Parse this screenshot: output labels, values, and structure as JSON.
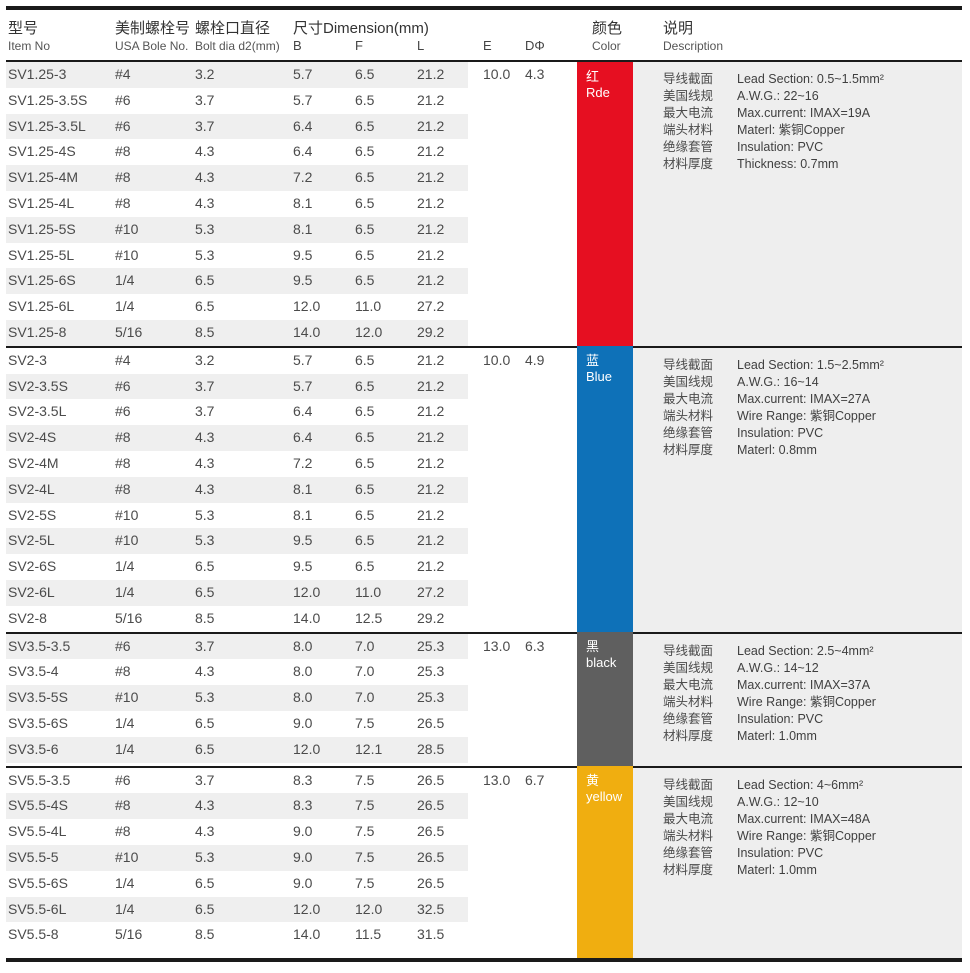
{
  "header": {
    "item": {
      "zh": "型号",
      "en": "Item No"
    },
    "usa": {
      "zh": "美制螺栓号",
      "en": "USA Bole No."
    },
    "dia": {
      "zh": "螺栓口直径",
      "en": "Bolt dia d2(mm)"
    },
    "dim": {
      "zh": "尺寸Dimension(mm)",
      "sub_b": "B",
      "sub_f": "F",
      "sub_l": "L"
    },
    "e": "E",
    "d": "DΦ",
    "color": {
      "zh": "颜色",
      "en": "Color"
    },
    "desc": {
      "zh": "说明",
      "en": "Description"
    }
  },
  "colors": {
    "rule": "#1a1a1a",
    "stripe": "#efefef",
    "desc_panel": "#eeeeee",
    "red": "#e60f21",
    "blue": "#0e71b8",
    "black": "#5f5f5f",
    "yellow": "#f0ae10"
  },
  "groups": [
    {
      "e": "10.0",
      "d": "4.3",
      "color": {
        "zh": "红",
        "en": "Rde",
        "hex": "#e60f21"
      },
      "rows": [
        [
          "SV1.25-3",
          "#4",
          "3.2",
          "5.7",
          "6.5",
          "21.2"
        ],
        [
          "SV1.25-3.5S",
          "#6",
          "3.7",
          "5.7",
          "6.5",
          "21.2"
        ],
        [
          "SV1.25-3.5L",
          "#6",
          "3.7",
          "6.4",
          "6.5",
          "21.2"
        ],
        [
          "SV1.25-4S",
          "#8",
          "4.3",
          "6.4",
          "6.5",
          "21.2"
        ],
        [
          "SV1.25-4M",
          "#8",
          "4.3",
          "7.2",
          "6.5",
          "21.2"
        ],
        [
          "SV1.25-4L",
          "#8",
          "4.3",
          "8.1",
          "6.5",
          "21.2"
        ],
        [
          "SV1.25-5S",
          "#10",
          "5.3",
          "8.1",
          "6.5",
          "21.2"
        ],
        [
          "SV1.25-5L",
          "#10",
          "5.3",
          "9.5",
          "6.5",
          "21.2"
        ],
        [
          "SV1.25-6S",
          "1/4",
          "6.5",
          "9.5",
          "6.5",
          "21.2"
        ],
        [
          "SV1.25-6L",
          "1/4",
          "6.5",
          "12.0",
          "11.0",
          "27.2"
        ],
        [
          "SV1.25-8",
          "5/16",
          "8.5",
          "14.0",
          "12.0",
          "29.2"
        ]
      ],
      "description": [
        {
          "label": "导线截面",
          "value": "Lead Section: 0.5~1.5mm²"
        },
        {
          "label": "美国线规",
          "value": "A.W.G.: 22~16"
        },
        {
          "label": "最大电流",
          "value": "Max.current: IMAX=19A"
        },
        {
          "label": "端头材料",
          "value": "Materl: 紫铜Copper"
        },
        {
          "label": "绝缘套管",
          "value": "Insulation: PVC"
        },
        {
          "label": "材料厚度",
          "value": "Thickness: 0.7mm"
        }
      ]
    },
    {
      "e": "10.0",
      "d": "4.9",
      "color": {
        "zh": "蓝",
        "en": "Blue",
        "hex": "#0e71b8"
      },
      "rows": [
        [
          "SV2-3",
          "#4",
          "3.2",
          "5.7",
          "6.5",
          "21.2"
        ],
        [
          "SV2-3.5S",
          "#6",
          "3.7",
          "5.7",
          "6.5",
          "21.2"
        ],
        [
          "SV2-3.5L",
          "#6",
          "3.7",
          "6.4",
          "6.5",
          "21.2"
        ],
        [
          "SV2-4S",
          "#8",
          "4.3",
          "6.4",
          "6.5",
          "21.2"
        ],
        [
          "SV2-4M",
          "#8",
          "4.3",
          "7.2",
          "6.5",
          "21.2"
        ],
        [
          "SV2-4L",
          "#8",
          "4.3",
          "8.1",
          "6.5",
          "21.2"
        ],
        [
          "SV2-5S",
          "#10",
          "5.3",
          "8.1",
          "6.5",
          "21.2"
        ],
        [
          "SV2-5L",
          "#10",
          "5.3",
          "9.5",
          "6.5",
          "21.2"
        ],
        [
          "SV2-6S",
          "1/4",
          "6.5",
          "9.5",
          "6.5",
          "21.2"
        ],
        [
          "SV2-6L",
          "1/4",
          "6.5",
          "12.0",
          "11.0",
          "27.2"
        ],
        [
          "SV2-8",
          "5/16",
          "8.5",
          "14.0",
          "12.5",
          "29.2"
        ]
      ],
      "description": [
        {
          "label": "导线截面",
          "value": "Lead Section: 1.5~2.5mm²"
        },
        {
          "label": "美国线规",
          "value": "A.W.G.: 16~14"
        },
        {
          "label": "最大电流",
          "value": "Max.current: IMAX=27A"
        },
        {
          "label": "端头材料",
          "value": "Wire Range: 紫铜Copper"
        },
        {
          "label": "绝缘套管",
          "value": "Insulation: PVC"
        },
        {
          "label": "材料厚度",
          "value": "Materl: 0.8mm"
        }
      ]
    },
    {
      "e": "13.0",
      "d": "6.3",
      "color": {
        "zh": "黑",
        "en": "black",
        "hex": "#5f5f5f"
      },
      "rows": [
        [
          "SV3.5-3.5",
          "#6",
          "3.7",
          "8.0",
          "7.0",
          "25.3"
        ],
        [
          "SV3.5-4",
          "#8",
          "4.3",
          "8.0",
          "7.0",
          "25.3"
        ],
        [
          "SV3.5-5S",
          "#10",
          "5.3",
          "8.0",
          "7.0",
          "25.3"
        ],
        [
          "SV3.5-6S",
          "1/4",
          "6.5",
          "9.0",
          "7.5",
          "26.5"
        ],
        [
          "SV3.5-6",
          "1/4",
          "6.5",
          "12.0",
          "12.1",
          "28.5"
        ]
      ],
      "description": [
        {
          "label": "导线截面",
          "value": "Lead Section: 2.5~4mm²"
        },
        {
          "label": "美国线规",
          "value": "A.W.G.: 14~12"
        },
        {
          "label": "最大电流",
          "value": "Max.current: IMAX=37A"
        },
        {
          "label": "端头材料",
          "value": "Wire Range: 紫铜Copper"
        },
        {
          "label": "绝缘套管",
          "value": "Insulation: PVC"
        },
        {
          "label": "材料厚度",
          "value": "Materl: 1.0mm"
        }
      ]
    },
    {
      "e": "13.0",
      "d": "6.7",
      "color": {
        "zh": "黄",
        "en": "yellow",
        "hex": "#f0ae10"
      },
      "rows": [
        [
          "SV5.5-3.5",
          "#6",
          "3.7",
          "8.3",
          "7.5",
          "26.5"
        ],
        [
          "SV5.5-4S",
          "#8",
          "4.3",
          "8.3",
          "7.5",
          "26.5"
        ],
        [
          "SV5.5-4L",
          "#8",
          "4.3",
          "9.0",
          "7.5",
          "26.5"
        ],
        [
          "SV5.5-5",
          "#10",
          "5.3",
          "9.0",
          "7.5",
          "26.5"
        ],
        [
          "SV5.5-6S",
          "1/4",
          "6.5",
          "9.0",
          "7.5",
          "26.5"
        ],
        [
          "SV5.5-6L",
          "1/4",
          "6.5",
          "12.0",
          "12.0",
          "32.5"
        ],
        [
          "SV5.5-8",
          "5/16",
          "8.5",
          "14.0",
          "11.5",
          "31.5"
        ]
      ],
      "description": [
        {
          "label": "导线截面",
          "value": "Lead Section: 4~6mm²"
        },
        {
          "label": "美国线规",
          "value": "A.W.G.: 12~10"
        },
        {
          "label": "最大电流",
          "value": "Max.current: IMAX=48A"
        },
        {
          "label": "端头材料",
          "value": "Wire Range: 紫铜Copper"
        },
        {
          "label": "绝缘套管",
          "value": "Insulation: PVC"
        },
        {
          "label": "材料厚度",
          "value": "Materl: 1.0mm"
        }
      ]
    }
  ]
}
